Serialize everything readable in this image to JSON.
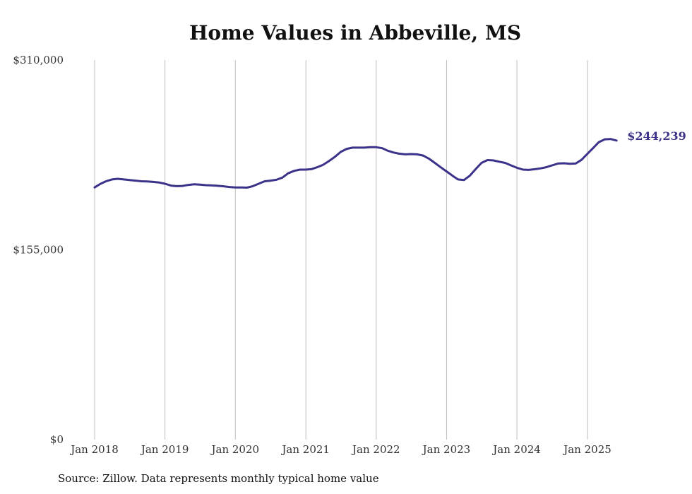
{
  "chart_data": {
    "type": "line",
    "title": "Home Values in Abbeville, MS",
    "xlabel": "",
    "ylabel": "",
    "ylim": [
      0,
      310000
    ],
    "y_ticks": [
      {
        "value": 310000,
        "label": "$310,000"
      },
      {
        "value": 155000,
        "label": "$155,000"
      },
      {
        "value": 0,
        "label": "$0"
      }
    ],
    "x_ticks": [
      "Jan 2018",
      "Jan 2019",
      "Jan 2020",
      "Jan 2021",
      "Jan 2022",
      "Jan 2023",
      "Jan 2024",
      "Jan 2025"
    ],
    "grid": "vertical",
    "line_color": "#3b3289",
    "end_label": "$244,239",
    "series": [
      {
        "x": [
          "2018-01",
          "2018-02",
          "2018-03",
          "2018-04",
          "2018-05",
          "2018-06",
          "2018-07",
          "2018-08",
          "2018-09",
          "2018-10",
          "2018-11",
          "2018-12",
          "2019-01",
          "2019-02",
          "2019-03",
          "2019-04",
          "2019-05",
          "2019-06",
          "2019-07",
          "2019-08",
          "2019-09",
          "2019-10",
          "2019-11",
          "2019-12",
          "2020-01",
          "2020-02",
          "2020-03",
          "2020-04",
          "2020-05",
          "2020-06",
          "2020-07",
          "2020-08",
          "2020-09",
          "2020-10",
          "2020-11",
          "2020-12",
          "2021-01",
          "2021-02",
          "2021-03",
          "2021-04",
          "2021-05",
          "2021-06",
          "2021-07",
          "2021-08",
          "2021-09",
          "2021-10",
          "2021-11",
          "2021-12",
          "2022-01",
          "2022-02",
          "2022-03",
          "2022-04",
          "2022-05",
          "2022-06",
          "2022-07",
          "2022-08",
          "2022-09",
          "2022-10",
          "2022-11",
          "2022-12",
          "2023-01",
          "2023-02",
          "2023-03",
          "2023-04",
          "2023-05",
          "2023-06",
          "2023-07",
          "2023-08",
          "2023-09",
          "2023-10",
          "2023-11",
          "2023-12",
          "2024-01",
          "2024-02",
          "2024-03",
          "2024-04",
          "2024-05",
          "2024-06",
          "2024-07",
          "2024-08",
          "2024-09",
          "2024-10",
          "2024-11",
          "2024-12",
          "2025-01",
          "2025-02",
          "2025-03",
          "2025-04",
          "2025-05",
          "2025-06"
        ],
        "values": [
          206000,
          209000,
          211000,
          212500,
          213000,
          212500,
          212000,
          211500,
          211000,
          210800,
          210500,
          210000,
          209000,
          207500,
          207000,
          207200,
          208000,
          208500,
          208300,
          207800,
          207600,
          207300,
          206900,
          206300,
          206000,
          206000,
          205800,
          207000,
          209000,
          211000,
          211500,
          212200,
          214000,
          217500,
          219500,
          220500,
          220500,
          221000,
          222500,
          224500,
          227500,
          231000,
          235000,
          237500,
          238500,
          238500,
          238500,
          238900,
          238800,
          238000,
          236000,
          234500,
          233500,
          233000,
          233200,
          233000,
          232000,
          229500,
          226000,
          222500,
          219000,
          215500,
          212500,
          212000,
          215500,
          221000,
          226000,
          228300,
          228000,
          227000,
          226000,
          224000,
          222000,
          220500,
          220300,
          220800,
          221500,
          222500,
          224000,
          225500,
          225700,
          225300,
          225500,
          228500,
          233500,
          238500,
          243000,
          245300,
          245500,
          244239
        ]
      }
    ]
  },
  "source_note": "Source: Zillow. Data represents monthly typical home value"
}
